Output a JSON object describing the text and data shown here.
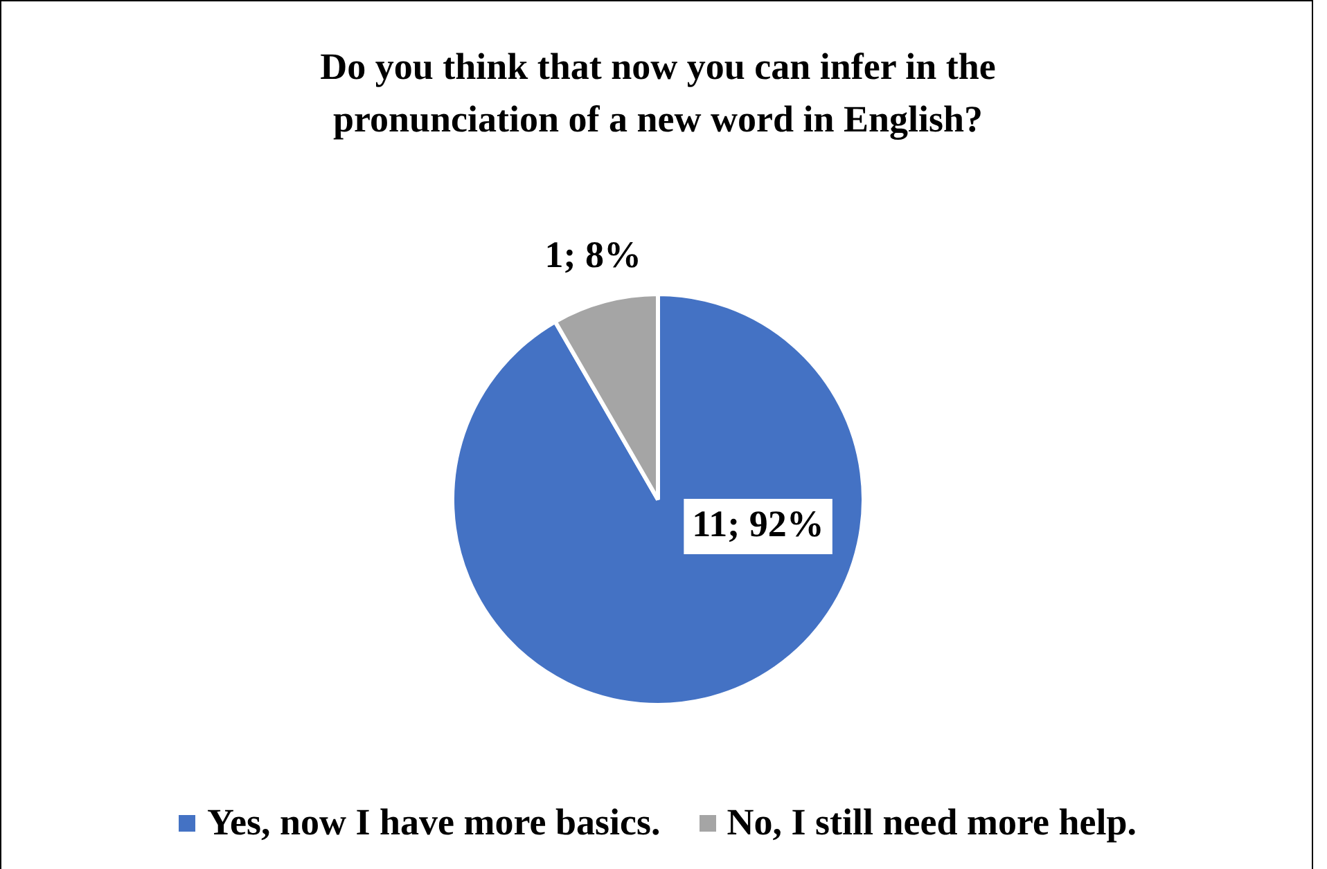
{
  "chart_data": {
    "type": "pie",
    "title": "Do you think that now you can infer in the pronunciation of a new word in English?",
    "categories": [
      "Yes, now I have more basics.",
      "No, I still need more help."
    ],
    "values": [
      11,
      1
    ],
    "colors": [
      "#4472c4",
      "#a5a5a5"
    ],
    "value_labels": [
      "11; 92%",
      "1; 8%"
    ],
    "legend": "bottom"
  }
}
